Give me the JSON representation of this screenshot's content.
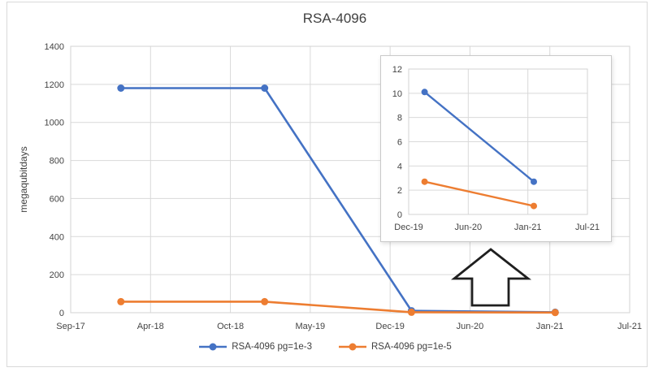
{
  "figure": {
    "title": "RSA-4096",
    "frame_border_color": "#d9d9d9",
    "background_color": "#ffffff",
    "gridline_color": "#d9d9d9"
  },
  "legend": {
    "position": "bottom-center",
    "items": [
      {
        "label": "RSA-4096 pg=1e-3",
        "color": "#4472C4",
        "marker": "line-with-circle"
      },
      {
        "label": "RSA-4096 pg=1e-5",
        "color": "#ED7D31",
        "marker": "line-with-circle"
      }
    ]
  },
  "annotation": {
    "type": "block-arrow-up",
    "meaning": "zoom-callout-from-main-curve-to-inset",
    "fill": "#ffffff",
    "stroke": "#1f1f1f"
  },
  "chart_data": [
    {
      "type": "line",
      "role": "main",
      "title": "RSA-4096",
      "xlabel": "",
      "ylabel": "megaqubitdays",
      "grid": "both",
      "legend_position": "bottom-center",
      "x_tick_labels": [
        "Sep-17",
        "Apr-18",
        "Oct-18",
        "May-19",
        "Dec-19",
        "Jun-20",
        "Jan-21",
        "Jul-21"
      ],
      "x_tick_months_from_start": [
        0,
        7,
        13,
        20,
        27,
        33,
        40,
        46
      ],
      "ylim": [
        0,
        1400
      ],
      "y_ticks": [
        0,
        200,
        400,
        600,
        800,
        1000,
        1200,
        1400
      ],
      "series": [
        {
          "name": "RSA-4096 pg=1e-3",
          "color": "#4472C4",
          "marker": "circle",
          "points": [
            {
              "x": "Jan-18",
              "x_month": 4.4,
              "y": 1180
            },
            {
              "x": "Jan-19",
              "x_month": 16.0,
              "y": 1180
            },
            {
              "x": "Feb-20",
              "x_month": 28.6,
              "y": 10.1
            },
            {
              "x": "Feb-21",
              "x_month": 40.4,
              "y": 2.7
            }
          ]
        },
        {
          "name": "RSA-4096 pg=1e-5",
          "color": "#ED7D31",
          "marker": "circle",
          "points": [
            {
              "x": "Jan-18",
              "x_month": 4.4,
              "y": 58
            },
            {
              "x": "Jan-19",
              "x_month": 16.0,
              "y": 58
            },
            {
              "x": "Feb-20",
              "x_month": 28.6,
              "y": 2.7
            },
            {
              "x": "Feb-21",
              "x_month": 40.4,
              "y": 0.7
            }
          ]
        }
      ]
    },
    {
      "type": "line",
      "role": "inset-zoom",
      "title": "",
      "xlabel": "",
      "ylabel": "",
      "grid": "both",
      "x_tick_labels": [
        "Dec-19",
        "Jun-20",
        "Jan-21",
        "Jul-21"
      ],
      "x_tick_months_from_start": [
        27,
        33,
        40,
        46
      ],
      "ylim": [
        0,
        12
      ],
      "y_ticks": [
        0,
        2,
        4,
        6,
        8,
        10,
        12
      ],
      "series": [
        {
          "name": "RSA-4096 pg=1e-3",
          "color": "#4472C4",
          "marker": "circle",
          "points": [
            {
              "x": "Feb-20",
              "x_month": 28.6,
              "y": 10.1
            },
            {
              "x": "Feb-21",
              "x_month": 40.6,
              "y": 2.7
            }
          ]
        },
        {
          "name": "RSA-4096 pg=1e-5",
          "color": "#ED7D31",
          "marker": "circle",
          "points": [
            {
              "x": "Feb-20",
              "x_month": 28.6,
              "y": 2.7
            },
            {
              "x": "Feb-21",
              "x_month": 40.6,
              "y": 0.7
            }
          ]
        }
      ]
    }
  ]
}
